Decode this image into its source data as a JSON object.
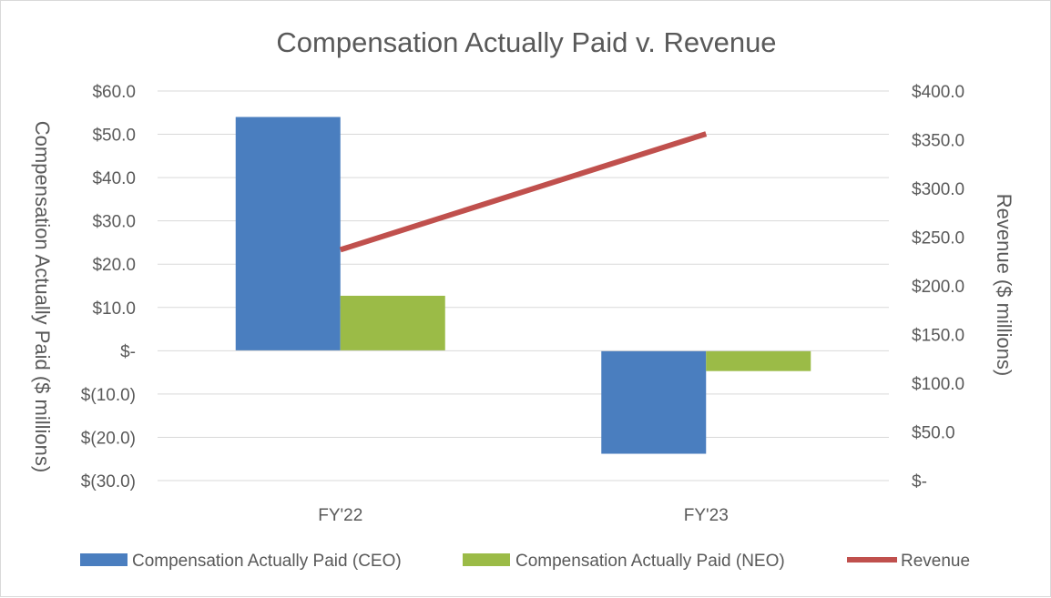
{
  "chart_data": {
    "type": "bar",
    "title": "Compensation Actually Paid v. Revenue",
    "categories": [
      "FY'22",
      "FY'23"
    ],
    "ylabel_left": "Compensation Actually Paid ($ millions)",
    "ylabel_right": "Revenue ($ millions)",
    "ylim_left": [
      -30,
      60
    ],
    "ylim_right": [
      0,
      400
    ],
    "yticks_left": [
      "$60.0",
      "$50.0",
      "$40.0",
      "$30.0",
      "$20.0",
      "$10.0",
      "$-",
      "$(10.0)",
      "$(20.0)",
      "$(30.0)"
    ],
    "yticks_right": [
      "$400.0",
      "$350.0",
      "$300.0",
      "$250.0",
      "$200.0",
      "$150.0",
      "$100.0",
      "$50.0",
      "$-"
    ],
    "series": [
      {
        "name": "Compensation Actually Paid (CEO)",
        "kind": "bar",
        "axis": "left",
        "color": "#4a7ebf",
        "values": [
          54.0,
          -23.8
        ]
      },
      {
        "name": "Compensation Actually Paid (NEO)",
        "kind": "bar",
        "axis": "left",
        "color": "#9bbb47",
        "values": [
          12.7,
          -4.7
        ]
      },
      {
        "name": "Revenue",
        "kind": "line",
        "axis": "right",
        "color": "#c0504d",
        "values": [
          237,
          356
        ]
      }
    ],
    "legend_position": "bottom",
    "grid": true
  }
}
